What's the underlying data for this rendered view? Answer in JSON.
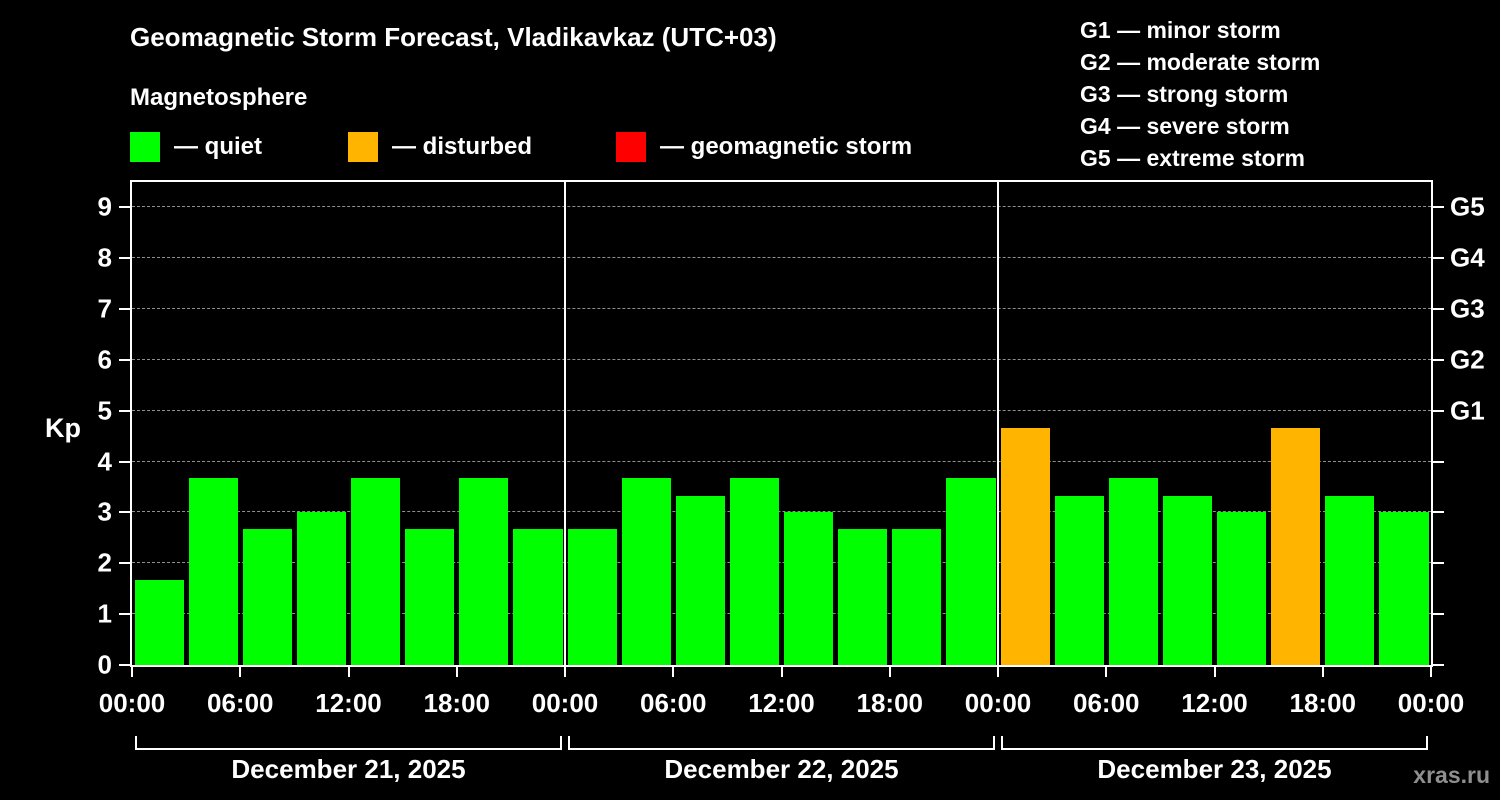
{
  "header": {
    "title": "Geomagnetic Storm Forecast, Vladikavkaz (UTC+03)",
    "subtitle": "Magnetosphere"
  },
  "legend": {
    "quiet": {
      "label": "— quiet",
      "color": "#00ff00"
    },
    "disturbed": {
      "label": "— disturbed",
      "color": "#ffb400"
    },
    "storm": {
      "label": "— geomagnetic storm",
      "color": "#ff0000"
    }
  },
  "g_legend": {
    "g1": "G1 — minor storm",
    "g2": "G2 — moderate storm",
    "g3": "G3 — strong storm",
    "g4": "G4 — severe storm",
    "g5": "G5 — extreme storm"
  },
  "axis": {
    "kp_label": "Kp"
  },
  "watermark": "xras.ru",
  "chart_data": {
    "type": "bar",
    "title": "Geomagnetic Storm Forecast, Vladikavkaz (UTC+03)",
    "xlabel": "",
    "ylabel": "Kp",
    "ylim": [
      0,
      9.5
    ],
    "yticks": [
      0,
      1,
      2,
      3,
      4,
      5,
      6,
      7,
      8,
      9
    ],
    "grid": "dashed horizontal at integer Kp",
    "right_axis_ticks": [
      {
        "kp": 5,
        "label": "G1"
      },
      {
        "kp": 6,
        "label": "G2"
      },
      {
        "kp": 7,
        "label": "G3"
      },
      {
        "kp": 8,
        "label": "G4"
      },
      {
        "kp": 9,
        "label": "G5"
      }
    ],
    "x_tick_labels": [
      "00:00",
      "06:00",
      "12:00",
      "18:00",
      "00:00",
      "06:00",
      "12:00",
      "18:00",
      "00:00",
      "06:00",
      "12:00",
      "18:00",
      "00:00"
    ],
    "bar_interval_hours": 3,
    "status_colors": {
      "quiet": "#00ff00",
      "disturbed": "#ffb400",
      "storm": "#ff0000"
    },
    "days": [
      {
        "date": "December 21, 2025",
        "bars": [
          {
            "kp": 1.67,
            "status": "quiet"
          },
          {
            "kp": 3.67,
            "status": "quiet"
          },
          {
            "kp": 2.67,
            "status": "quiet"
          },
          {
            "kp": 3.0,
            "status": "quiet"
          },
          {
            "kp": 3.67,
            "status": "quiet"
          },
          {
            "kp": 2.67,
            "status": "quiet"
          },
          {
            "kp": 3.67,
            "status": "quiet"
          },
          {
            "kp": 2.67,
            "status": "quiet"
          }
        ]
      },
      {
        "date": "December 22, 2025",
        "bars": [
          {
            "kp": 2.67,
            "status": "quiet"
          },
          {
            "kp": 3.67,
            "status": "quiet"
          },
          {
            "kp": 3.33,
            "status": "quiet"
          },
          {
            "kp": 3.67,
            "status": "quiet"
          },
          {
            "kp": 3.0,
            "status": "quiet"
          },
          {
            "kp": 2.67,
            "status": "quiet"
          },
          {
            "kp": 2.67,
            "status": "quiet"
          },
          {
            "kp": 3.67,
            "status": "quiet"
          }
        ]
      },
      {
        "date": "December 23, 2025",
        "bars": [
          {
            "kp": 4.67,
            "status": "disturbed"
          },
          {
            "kp": 3.33,
            "status": "quiet"
          },
          {
            "kp": 3.67,
            "status": "quiet"
          },
          {
            "kp": 3.33,
            "status": "quiet"
          },
          {
            "kp": 3.0,
            "status": "quiet"
          },
          {
            "kp": 4.67,
            "status": "disturbed"
          },
          {
            "kp": 3.33,
            "status": "quiet"
          },
          {
            "kp": 3.0,
            "status": "quiet"
          }
        ]
      }
    ]
  }
}
